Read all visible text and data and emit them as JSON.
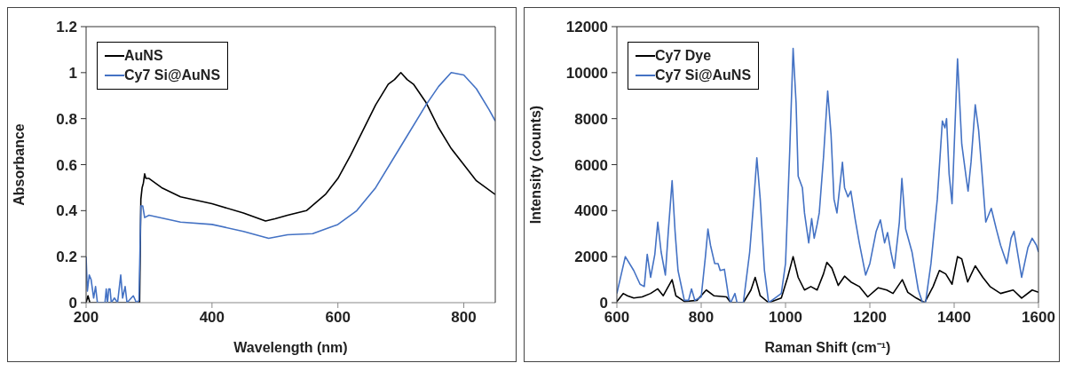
{
  "chart_data": [
    {
      "type": "line",
      "xlabel": "Wavelength (nm)",
      "ylabel": "Absorbance",
      "xlim": [
        200,
        850
      ],
      "xticks": [
        200,
        400,
        600,
        800
      ],
      "ylim": [
        0,
        1.2
      ],
      "yticks": [
        0,
        0.2,
        0.4,
        0.6,
        0.8,
        1,
        1.2
      ],
      "legend": "top left",
      "marker": "none",
      "line_style": "solid",
      "series": [
        {
          "name": "AuNS",
          "color": "#000000",
          "x": [
            200,
            203,
            206,
            210,
            220,
            240,
            260,
            280,
            285,
            287,
            289,
            291,
            293,
            295,
            300,
            320,
            350,
            400,
            450,
            485,
            500,
            520,
            550,
            580,
            600,
            620,
            640,
            660,
            680,
            690,
            700,
            710,
            720,
            740,
            760,
            780,
            800,
            820,
            850
          ],
          "values": [
            0,
            0.03,
            0,
            0,
            0,
            0,
            0,
            0,
            0,
            0.45,
            0.5,
            0.52,
            0.56,
            0.54,
            0.54,
            0.5,
            0.46,
            0.43,
            0.39,
            0.355,
            0.365,
            0.38,
            0.4,
            0.47,
            0.54,
            0.64,
            0.75,
            0.86,
            0.95,
            0.97,
            1.0,
            0.97,
            0.95,
            0.87,
            0.76,
            0.67,
            0.6,
            0.53,
            0.47
          ]
        },
        {
          "name": "Cy7 Si@AuNS",
          "color": "#4472c4",
          "x": [
            200,
            202,
            205,
            208,
            212,
            215,
            218,
            230,
            232,
            234,
            236,
            238,
            240,
            245,
            250,
            255,
            258,
            262,
            265,
            275,
            280,
            284,
            287,
            290,
            293,
            300,
            350,
            400,
            450,
            490,
            520,
            560,
            600,
            630,
            660,
            700,
            740,
            760,
            780,
            800,
            820,
            840,
            850
          ],
          "values": [
            0.2,
            0.05,
            0.12,
            0.1,
            0.02,
            0.07,
            0,
            0,
            0.06,
            0,
            0.06,
            0.06,
            0,
            0.02,
            0,
            0.12,
            0.02,
            0.07,
            0,
            0.03,
            0,
            0.01,
            0.42,
            0.42,
            0.37,
            0.38,
            0.35,
            0.34,
            0.31,
            0.28,
            0.295,
            0.3,
            0.34,
            0.4,
            0.5,
            0.68,
            0.86,
            0.94,
            1.0,
            0.99,
            0.93,
            0.84,
            0.79
          ]
        }
      ]
    },
    {
      "type": "line",
      "xlabel": "Raman Shift (cm⁻¹)",
      "ylabel": "Intensity (counts)",
      "xlim": [
        600,
        1600
      ],
      "xticks": [
        600,
        800,
        1000,
        1200,
        1400,
        1600
      ],
      "ylim": [
        0,
        12000
      ],
      "yticks": [
        0,
        2000,
        4000,
        6000,
        8000,
        10000,
        12000
      ],
      "legend": "top left",
      "marker": "none",
      "line_style": "solid",
      "series": [
        {
          "name": "Cy7 Dye",
          "color": "#000000",
          "x": [
            600,
            615,
            625,
            640,
            660,
            680,
            697,
            710,
            731,
            740,
            760,
            790,
            812,
            830,
            860,
            870,
            900,
            918,
            928,
            940,
            960,
            990,
            1005,
            1018,
            1030,
            1045,
            1060,
            1075,
            1090,
            1098,
            1110,
            1125,
            1140,
            1155,
            1175,
            1195,
            1220,
            1240,
            1255,
            1277,
            1290,
            1310,
            1330,
            1350,
            1365,
            1380,
            1395,
            1408,
            1418,
            1432,
            1450,
            1468,
            1485,
            1510,
            1540,
            1560,
            1585,
            1600
          ],
          "values": [
            50,
            400,
            300,
            200,
            250,
            400,
            600,
            300,
            1000,
            300,
            50,
            100,
            550,
            300,
            250,
            0,
            0,
            550,
            1100,
            300,
            0,
            200,
            1100,
            2000,
            1100,
            550,
            700,
            550,
            1250,
            1750,
            1500,
            750,
            1150,
            900,
            700,
            250,
            650,
            550,
            400,
            1000,
            450,
            200,
            0,
            700,
            1400,
            1250,
            800,
            2000,
            1900,
            900,
            1600,
            1100,
            700,
            400,
            550,
            200,
            550,
            450
          ]
        },
        {
          "name": "Cy7 Si@AuNS",
          "color": "#4472c4",
          "x": [
            600,
            620,
            640,
            655,
            665,
            672,
            680,
            690,
            697,
            705,
            715,
            722,
            731,
            738,
            745,
            760,
            770,
            777,
            785,
            800,
            810,
            816,
            822,
            832,
            840,
            845,
            855,
            865,
            870,
            880,
            885,
            900,
            915,
            925,
            932,
            940,
            950,
            960,
            975,
            990,
            1000,
            1010,
            1018,
            1025,
            1030,
            1040,
            1045,
            1055,
            1062,
            1068,
            1075,
            1080,
            1090,
            1100,
            1108,
            1115,
            1122,
            1135,
            1140,
            1148,
            1155,
            1165,
            1175,
            1190,
            1200,
            1215,
            1225,
            1235,
            1242,
            1250,
            1258,
            1270,
            1276,
            1285,
            1300,
            1315,
            1325,
            1332,
            1345,
            1360,
            1372,
            1378,
            1382,
            1388,
            1395,
            1408,
            1418,
            1428,
            1433,
            1440,
            1450,
            1458,
            1465,
            1475,
            1488,
            1500,
            1510,
            1525,
            1535,
            1542,
            1560,
            1575,
            1585,
            1595,
            1600
          ],
          "values": [
            400,
            2000,
            1400,
            800,
            700,
            2100,
            1100,
            2100,
            3500,
            2200,
            1200,
            3100,
            5300,
            3100,
            1400,
            100,
            100,
            600,
            100,
            250,
            2000,
            3200,
            2500,
            1700,
            1700,
            1400,
            1450,
            250,
            0,
            400,
            0,
            0,
            2200,
            4500,
            6300,
            4500,
            1400,
            0,
            200,
            400,
            1700,
            6600,
            11050,
            8700,
            5500,
            5000,
            3900,
            2600,
            3650,
            2800,
            3400,
            3900,
            6300,
            9200,
            7300,
            4500,
            3900,
            6100,
            5000,
            4600,
            4850,
            3650,
            2600,
            1200,
            1700,
            3100,
            3600,
            2600,
            3050,
            2200,
            1500,
            3500,
            5400,
            3200,
            2200,
            550,
            0,
            0,
            1700,
            4500,
            7900,
            7600,
            8000,
            5600,
            4300,
            10600,
            6900,
            5500,
            4850,
            6100,
            8600,
            7500,
            5900,
            3500,
            4100,
            3200,
            2500,
            1700,
            2800,
            3100,
            1100,
            2400,
            2800,
            2500,
            2200
          ]
        }
      ]
    }
  ]
}
